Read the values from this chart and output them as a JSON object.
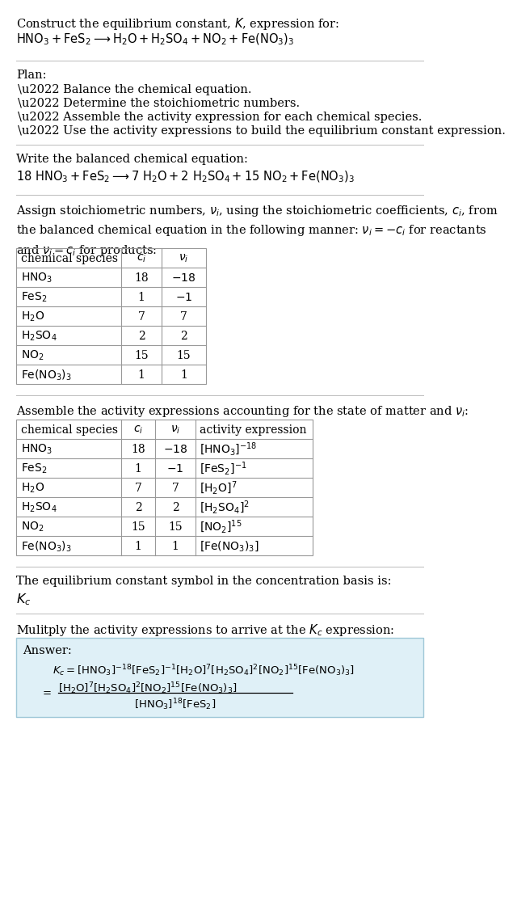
{
  "bg_color": "#ffffff",
  "text_color": "#000000",
  "title_line1": "Construct the equilibrium constant, $K$, expression for:",
  "title_line2": "$\\mathrm{HNO_3 + FeS_2 \\longrightarrow H_2O + H_2SO_4 + NO_2 + Fe(NO_3)_3}$",
  "plan_header": "Plan:",
  "plan_items": [
    "\\u2022 Balance the chemical equation.",
    "\\u2022 Determine the stoichiometric numbers.",
    "\\u2022 Assemble the activity expression for each chemical species.",
    "\\u2022 Use the activity expressions to build the equilibrium constant expression."
  ],
  "balanced_header": "Write the balanced chemical equation:",
  "balanced_eq": "$\\mathrm{18\\ HNO_3 + FeS_2 \\longrightarrow 7\\ H_2O + 2\\ H_2SO_4 + 15\\ NO_2 + Fe(NO_3)_3}$",
  "stoich_intro": "Assign stoichiometric numbers, $\\nu_i$, using the stoichiometric coefficients, $c_i$, from\nthe balanced chemical equation in the following manner: $\\nu_i = -c_i$ for reactants\nand $\\nu_i = c_i$ for products:",
  "table1_cols": [
    "chemical species",
    "$c_i$",
    "$\\nu_i$"
  ],
  "table1_rows": [
    [
      "$\\mathrm{HNO_3}$",
      "18",
      "$-18$"
    ],
    [
      "$\\mathrm{FeS_2}$",
      "1",
      "$-1$"
    ],
    [
      "$\\mathrm{H_2O}$",
      "7",
      "7"
    ],
    [
      "$\\mathrm{H_2SO_4}$",
      "2",
      "2"
    ],
    [
      "$\\mathrm{NO_2}$",
      "15",
      "15"
    ],
    [
      "$\\mathrm{Fe(NO_3)_3}$",
      "1",
      "1"
    ]
  ],
  "activity_header": "Assemble the activity expressions accounting for the state of matter and $\\nu_i$:",
  "table2_cols": [
    "chemical species",
    "$c_i$",
    "$\\nu_i$",
    "activity expression"
  ],
  "table2_rows": [
    [
      "$\\mathrm{HNO_3}$",
      "18",
      "$-18$",
      "$[\\mathrm{HNO_3}]^{-18}$"
    ],
    [
      "$\\mathrm{FeS_2}$",
      "1",
      "$-1$",
      "$[\\mathrm{FeS_2}]^{-1}$"
    ],
    [
      "$\\mathrm{H_2O}$",
      "7",
      "7",
      "$[\\mathrm{H_2O}]^{7}$"
    ],
    [
      "$\\mathrm{H_2SO_4}$",
      "2",
      "2",
      "$[\\mathrm{H_2SO_4}]^{2}$"
    ],
    [
      "$\\mathrm{NO_2}$",
      "15",
      "15",
      "$[\\mathrm{NO_2}]^{15}$"
    ],
    [
      "$\\mathrm{Fe(NO_3)_3}$",
      "1",
      "1",
      "$[\\mathrm{Fe(NO_3)_3}]$"
    ]
  ],
  "kc_header": "The equilibrium constant symbol in the concentration basis is:",
  "kc_symbol": "$K_c$",
  "multiply_header": "Mulitply the activity expressions to arrive at the $K_c$ expression:",
  "answer_label": "Answer:",
  "answer_line1": "$K_c = [\\mathrm{HNO_3}]^{-18} [\\mathrm{FeS_2}]^{-1} [\\mathrm{H_2O}]^{7} [\\mathrm{H_2SO_4}]^{2} [\\mathrm{NO_2}]^{15} [\\mathrm{Fe(NO_3)_3}]$",
  "answer_eq_sign": "$=$",
  "answer_num": "$[\\mathrm{H_2O}]^{7} [\\mathrm{H_2SO_4}]^{2} [\\mathrm{NO_2}]^{15} [\\mathrm{Fe(NO_3)_3}]$",
  "answer_den": "$[\\mathrm{HNO_3}]^{18} [\\mathrm{FeS_2}]$",
  "answer_box_color": "#dff0f7",
  "answer_box_border": "#a0c8d8",
  "table_border_color": "#999999",
  "separator_color": "#bbbbbb",
  "font_size": 10.5,
  "font_size_table": 10.0,
  "font_size_answer": 9.5
}
